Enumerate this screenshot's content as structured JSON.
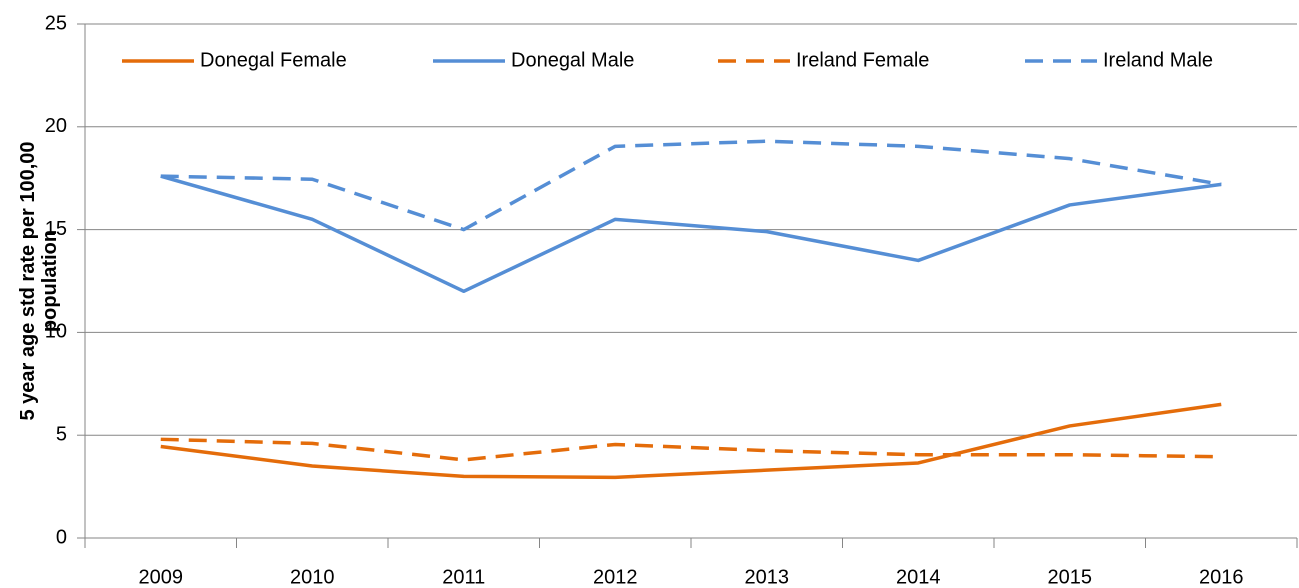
{
  "chart_data": {
    "type": "line",
    "y_label": [
      "5 year age std rate per 100,00",
      "population"
    ],
    "categories": [
      "2009",
      "2010",
      "2011",
      "2012",
      "2013",
      "2014",
      "2015",
      "2016"
    ],
    "series": [
      {
        "name": "Donegal Female",
        "color": "#e46c0a",
        "dashed": false,
        "values": [
          4.45,
          3.5,
          3.0,
          2.95,
          3.3,
          3.65,
          5.45,
          6.5
        ]
      },
      {
        "name": "Donegal Male",
        "color": "#558ed5",
        "dashed": false,
        "values": [
          17.6,
          15.5,
          12.0,
          15.5,
          14.9,
          13.5,
          16.2,
          17.2
        ]
      },
      {
        "name": "Ireland Female",
        "color": "#e46c0a",
        "dashed": true,
        "values": [
          4.8,
          4.6,
          3.8,
          4.55,
          4.25,
          4.05,
          4.05,
          3.95
        ]
      },
      {
        "name": "Ireland Male",
        "color": "#558ed5",
        "dashed": true,
        "values": [
          17.6,
          17.45,
          15.0,
          19.05,
          19.3,
          19.05,
          18.45,
          17.2
        ]
      }
    ],
    "ylim": [
      0,
      25
    ],
    "yticks": [
      0,
      5,
      10,
      15,
      20,
      25
    ],
    "grid": true,
    "legend": "top"
  }
}
